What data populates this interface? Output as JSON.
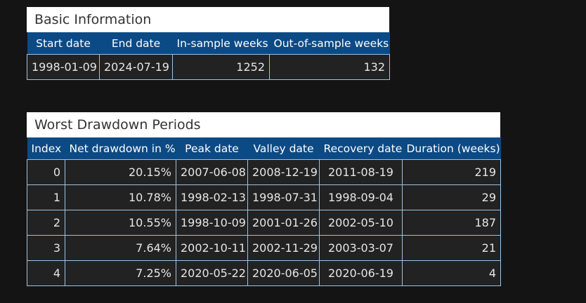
{
  "basic": {
    "title": "Basic Information",
    "headers": [
      "Start date",
      "End date",
      "In-sample weeks",
      "Out-of-sample weeks"
    ],
    "row": [
      "1998-01-09",
      "2024-07-19",
      "1252",
      "132"
    ]
  },
  "drawdown": {
    "title": "Worst Drawdown Periods",
    "headers": [
      "Index",
      "Net drawdown in %",
      "Peak date",
      "Valley date",
      "Recovery date",
      "Duration (weeks)"
    ],
    "rows": [
      [
        "0",
        "20.15%",
        "2007-06-08",
        "2008-12-19",
        "2011-08-19",
        "219"
      ],
      [
        "1",
        "10.78%",
        "1998-02-13",
        "1998-07-31",
        "1998-09-04",
        "29"
      ],
      [
        "2",
        "10.55%",
        "1998-10-09",
        "2001-01-26",
        "2002-05-10",
        "187"
      ],
      [
        "3",
        "7.64%",
        "2002-10-11",
        "2002-11-29",
        "2003-03-07",
        "21"
      ],
      [
        "4",
        "7.25%",
        "2020-05-22",
        "2020-06-05",
        "2020-06-19",
        "4"
      ]
    ]
  }
}
